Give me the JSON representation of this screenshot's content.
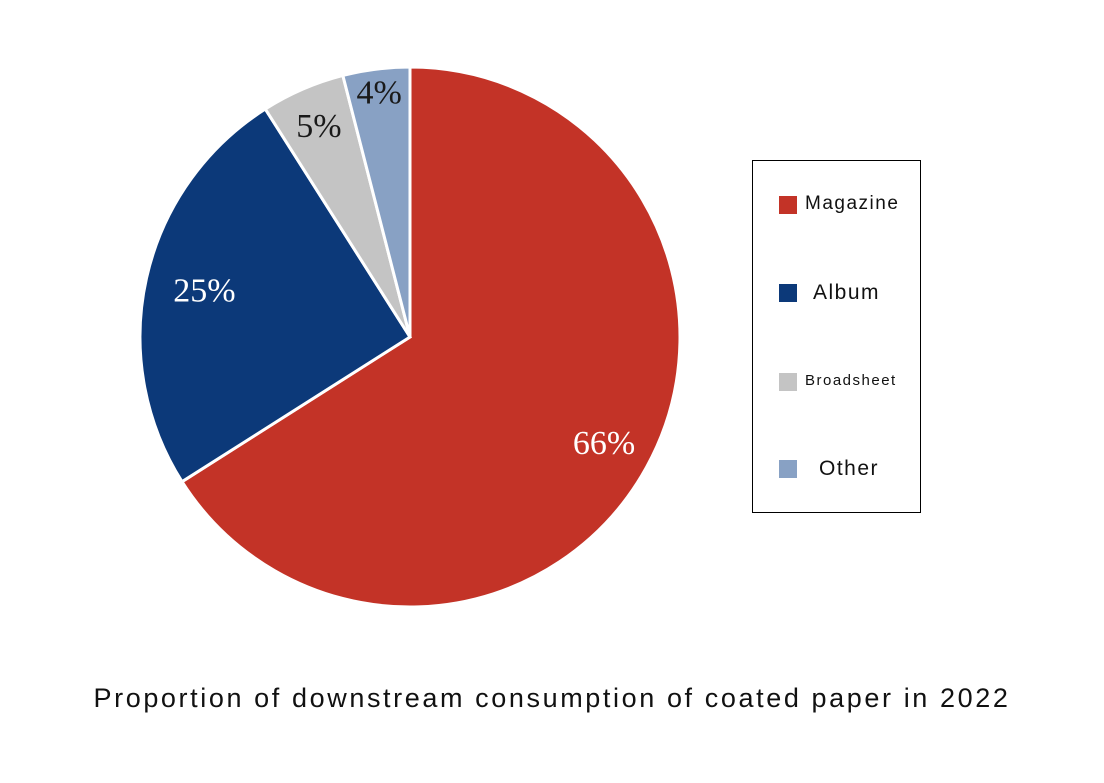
{
  "chart_data": {
    "type": "pie",
    "title": "Proportion of downstream consumption of coated paper in 2022",
    "slices": [
      {
        "name": "Magazine",
        "value": 66,
        "label": "66%",
        "color": "#c33327",
        "label_color": "#ffffff"
      },
      {
        "name": "Album",
        "value": 25,
        "label": "25%",
        "color": "#0c3979",
        "label_color": "#ffffff"
      },
      {
        "name": "Broadsheet",
        "value": 5,
        "label": "5%",
        "color": "#c4c4c4",
        "label_color": "#1a1a1a"
      },
      {
        "name": "Other",
        "value": 4,
        "label": "4%",
        "color": "#88a1c4",
        "label_color": "#1a1a1a"
      }
    ],
    "legend": {
      "placement": "right",
      "items": [
        "Magazine",
        "Album",
        "Broadsheet",
        "Other"
      ]
    }
  }
}
